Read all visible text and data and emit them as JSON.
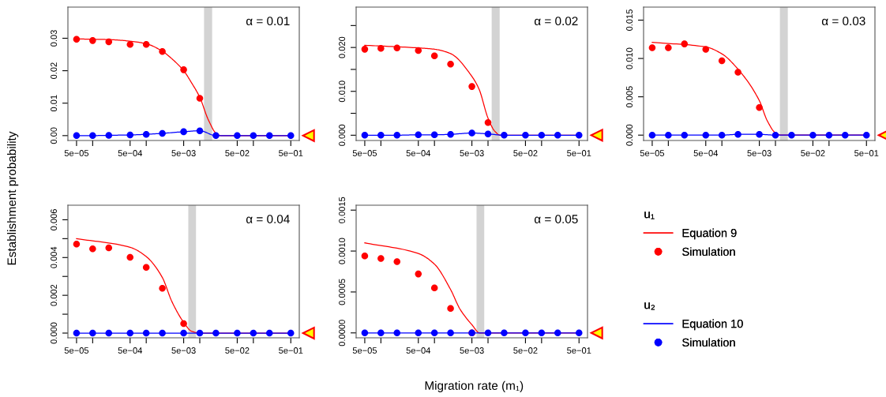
{
  "chart_data": [
    {
      "type": "line",
      "legend": "right",
      "legend_title": [
        "u₁",
        "u₂"
      ],
      "log": "x",
      "xlim": [
        3.45e-05,
        0.72
      ],
      "xticks": [
        {
          "value": 5e-05,
          "label": "5e−05"
        },
        {
          "value": 0.0001,
          "label": null
        },
        {
          "value": 0.0005,
          "label": "5e−04"
        },
        {
          "value": 0.001,
          "label": null
        },
        {
          "value": 0.005,
          "label": "5e−03"
        },
        {
          "value": 0.01,
          "label": null
        },
        {
          "value": 0.05,
          "label": "5e−02"
        },
        {
          "value": 0.1,
          "label": null
        },
        {
          "value": 0.5,
          "label": "5e−01"
        }
      ],
      "ylim": [
        -0.0015,
        0.0396
      ],
      "yticks": [
        {
          "value": 0,
          "label": "0.00"
        },
        {
          "value": 0.01,
          "label": "0.01"
        },
        {
          "value": 0.02,
          "label": "0.02"
        },
        {
          "value": 0.03,
          "label": "0.03"
        }
      ],
      "annotations": [
        "α = 0.01",
        "Migration rate (m₁)",
        "Establishment probability"
      ],
      "bands": [
        {
          "axis": "x",
          "from": 0.012,
          "to": 0.017,
          "color": "#d3d3d3"
        }
      ],
      "x": [
        5e-05,
        0.0001,
        0.0002,
        0.0005,
        0.001,
        0.002,
        0.005,
        0.01,
        0.02,
        0.05,
        0.1,
        0.2,
        0.5
      ],
      "series": [
        {
          "name": "Equation 9",
          "color": "#ff0000",
          "x": [
            5e-05,
            0.0001,
            0.0002,
            0.0005,
            0.001,
            0.002,
            0.003,
            0.005,
            0.007,
            0.01,
            0.0144,
            0.02,
            0.025,
            0.5
          ],
          "values": [
            0.0298,
            0.0297,
            0.0296,
            0.0291,
            0.0283,
            0.026,
            0.0237,
            0.02,
            0.0163,
            0.0118,
            0.0049,
            0.0008,
            0,
            0
          ]
        },
        {
          "name": "Simulation",
          "type": "scatter",
          "marker": "circle",
          "color": "#ff0000",
          "values": [
            0.0297,
            0.0293,
            0.0289,
            0.0281,
            0.0281,
            0.0259,
            0.0203,
            0.0115,
            null,
            null,
            null,
            null,
            null
          ]
        },
        {
          "name": "Equation 10",
          "color": "#0000ff",
          "x": [
            5e-05,
            0.0001,
            0.0002,
            0.0005,
            0.001,
            0.002,
            0.005,
            0.01,
            0.02,
            0.05,
            0.1,
            0.2,
            0.5
          ],
          "values": [
            0,
            0,
            0.0001,
            0.0002,
            0.0004,
            0.0007,
            0.0012,
            0.0015,
            0,
            0,
            0,
            0,
            0
          ]
        },
        {
          "name": "Simulation",
          "type": "scatter",
          "marker": "circle",
          "color": "#0000ff",
          "values": [
            0,
            0,
            0.0001,
            0.0002,
            0.0004,
            0.0007,
            0.0012,
            0.0015,
            0,
            0,
            0,
            0,
            0
          ]
        }
      ]
    },
    {
      "type": "line",
      "log": "x",
      "xlim": [
        3.45e-05,
        0.72
      ],
      "xticks": [
        {
          "value": 5e-05,
          "label": "5e−05"
        },
        {
          "value": 0.0001,
          "label": null
        },
        {
          "value": 0.0005,
          "label": "5e−04"
        },
        {
          "value": 0.001,
          "label": null
        },
        {
          "value": 0.005,
          "label": "5e−03"
        },
        {
          "value": 0.01,
          "label": null
        },
        {
          "value": 0.05,
          "label": "5e−02"
        },
        {
          "value": 0.1,
          "label": null
        },
        {
          "value": 0.5,
          "label": "5e−01"
        }
      ],
      "ylim": [
        -0.0012,
        0.0292
      ],
      "yticks": [
        {
          "value": 0,
          "label": "0.000"
        },
        {
          "value": 0.005,
          "label": null
        },
        {
          "value": 0.01,
          "label": "0.010"
        },
        {
          "value": 0.015,
          "label": null
        },
        {
          "value": 0.02,
          "label": "0.020"
        },
        {
          "value": 0.025,
          "label": null
        }
      ],
      "annotations": [
        "α = 0.02"
      ],
      "bands": [
        {
          "axis": "x",
          "from": 0.0117,
          "to": 0.0165,
          "color": "#d3d3d3"
        }
      ],
      "x": [
        5e-05,
        0.0001,
        0.0002,
        0.0005,
        0.001,
        0.002,
        0.005,
        0.01,
        0.02,
        0.05,
        0.1,
        0.2,
        0.5
      ],
      "series": [
        {
          "color": "#ff0000",
          "x": [
            5e-05,
            0.0005,
            0.001,
            0.002,
            0.005,
            0.0068,
            0.01,
            0.0134,
            0.017,
            0.5
          ],
          "values": [
            0.0205,
            0.0199,
            0.0196,
            0.0186,
            0.0134,
            0.0105,
            0.0039,
            0.0009,
            0,
            0
          ]
        },
        {
          "type": "scatter",
          "marker": "circle",
          "color": "#ff0000",
          "values": [
            0.0196,
            0.0198,
            0.0199,
            0.0193,
            0.0181,
            0.0162,
            0.0111,
            0.0029,
            null,
            null,
            null,
            null,
            null
          ]
        },
        {
          "color": "#0000ff",
          "x": [
            5e-05,
            0.0001,
            0.0002,
            0.0005,
            0.001,
            0.002,
            0.005,
            0.01,
            0.02,
            0.05,
            0.1,
            0.2,
            0.5
          ],
          "values": [
            0,
            0,
            0,
            0.0001,
            0.0001,
            0.0002,
            0.0005,
            0.0003,
            0,
            0,
            0,
            0,
            0
          ]
        },
        {
          "type": "scatter",
          "marker": "circle",
          "color": "#0000ff",
          "values": [
            0,
            0,
            0,
            0.0001,
            0.0001,
            0.0002,
            0.0005,
            0.0003,
            0,
            0,
            0,
            0,
            0
          ]
        }
      ]
    },
    {
      "type": "line",
      "log": "x",
      "xlim": [
        3.45e-05,
        0.72
      ],
      "xticks": [
        {
          "value": 5e-05,
          "label": "5e−05"
        },
        {
          "value": 0.0001,
          "label": null
        },
        {
          "value": 0.0005,
          "label": "5e−04"
        },
        {
          "value": 0.001,
          "label": null
        },
        {
          "value": 0.005,
          "label": "5e−03"
        },
        {
          "value": 0.01,
          "label": null
        },
        {
          "value": 0.05,
          "label": "5e−02"
        },
        {
          "value": 0.1,
          "label": null
        },
        {
          "value": 0.5,
          "label": "5e−01"
        }
      ],
      "ylim": [
        -0.0007,
        0.0167
      ],
      "yticks": [
        {
          "value": 0,
          "label": "0.000"
        },
        {
          "value": 0.005,
          "label": "0.005"
        },
        {
          "value": 0.01,
          "label": "0.010"
        },
        {
          "value": 0.015,
          "label": "0.015"
        }
      ],
      "annotations": [
        "α = 0.03"
      ],
      "bands": [
        {
          "axis": "x",
          "from": 0.0121,
          "to": 0.017,
          "color": "#d3d3d3"
        }
      ],
      "x": [
        5e-05,
        0.0001,
        0.0002,
        0.0005,
        0.001,
        0.002,
        0.005,
        0.01,
        0.02,
        0.05,
        0.1,
        0.2,
        0.5
      ],
      "series": [
        {
          "color": "#ff0000",
          "x": [
            5e-05,
            0.0005,
            0.001,
            0.002,
            0.005,
            0.007,
            0.01,
            0.013,
            0.5
          ],
          "values": [
            0.0121,
            0.0115,
            0.0106,
            0.0086,
            0.0045,
            0.0019,
            0.0003,
            0,
            0
          ]
        },
        {
          "type": "scatter",
          "marker": "circle",
          "color": "#ff0000",
          "values": [
            0.0114,
            0.0114,
            0.0119,
            0.0112,
            0.0097,
            0.0082,
            0.0036,
            null,
            null,
            null,
            null,
            null,
            null
          ]
        },
        {
          "color": "#0000ff",
          "x": [
            5e-05,
            0.0001,
            0.0002,
            0.0005,
            0.001,
            0.002,
            0.005,
            0.01,
            0.02,
            0.05,
            0.1,
            0.2,
            0.5
          ],
          "values": [
            0,
            0,
            0,
            0,
            0,
            0.0001,
            0.0001,
            0,
            0,
            0,
            0,
            0,
            0
          ]
        },
        {
          "type": "scatter",
          "marker": "circle",
          "color": "#0000ff",
          "values": [
            0,
            0,
            0,
            0,
            0,
            0.0001,
            0.0001,
            0,
            0,
            0,
            0,
            0,
            0
          ]
        }
      ]
    },
    {
      "type": "line",
      "log": "x",
      "xlim": [
        3.45e-05,
        0.72
      ],
      "xticks": [
        {
          "value": 5e-05,
          "label": "5e−05"
        },
        {
          "value": 0.0001,
          "label": null
        },
        {
          "value": 0.0005,
          "label": "5e−04"
        },
        {
          "value": 0.001,
          "label": null
        },
        {
          "value": 0.005,
          "label": "5e−03"
        },
        {
          "value": 0.01,
          "label": null
        },
        {
          "value": 0.05,
          "label": "5e−02"
        },
        {
          "value": 0.1,
          "label": null
        },
        {
          "value": 0.5,
          "label": "5e−01"
        }
      ],
      "ylim": [
        -0.00025,
        0.00677
      ],
      "yticks": [
        {
          "value": 0,
          "label": "0.000"
        },
        {
          "value": 0.001,
          "label": null
        },
        {
          "value": 0.002,
          "label": "0.002"
        },
        {
          "value": 0.003,
          "label": null
        },
        {
          "value": 0.004,
          "label": "0.004"
        },
        {
          "value": 0.005,
          "label": null
        },
        {
          "value": 0.006,
          "label": "0.006"
        }
      ],
      "annotations": [
        "α = 0.04"
      ],
      "bands": [
        {
          "axis": "x",
          "from": 0.0061,
          "to": 0.0085,
          "color": "#d3d3d3"
        }
      ],
      "x": [
        5e-05,
        0.0001,
        0.0002,
        0.0005,
        0.001,
        0.002,
        0.005,
        0.01,
        0.02,
        0.05,
        0.1,
        0.2,
        0.5
      ],
      "series": [
        {
          "color": "#ff0000",
          "x": [
            5e-05,
            0.0005,
            0.001,
            0.002,
            0.003,
            0.005,
            0.007,
            0.01,
            0.5
          ],
          "values": [
            0.005,
            0.00454,
            0.00405,
            0.00294,
            0.00168,
            0.00057,
            0.0001,
            0,
            0
          ]
        },
        {
          "type": "scatter",
          "marker": "circle",
          "color": "#ff0000",
          "values": [
            0.00471,
            0.00446,
            0.00451,
            0.00401,
            0.00348,
            0.00237,
            0.0005,
            null,
            null,
            null,
            null,
            null,
            null
          ]
        },
        {
          "color": "#0000ff",
          "x": [
            5e-05,
            0.0001,
            0.0002,
            0.0005,
            0.001,
            0.002,
            0.005,
            0.01,
            0.02,
            0.05,
            0.1,
            0.2,
            0.5
          ],
          "values": [
            0,
            0,
            0,
            0,
            0,
            0,
            0,
            0,
            0,
            0,
            0,
            0,
            0
          ]
        },
        {
          "type": "scatter",
          "marker": "circle",
          "color": "#0000ff",
          "values": [
            0,
            0,
            0,
            0,
            0,
            0,
            0,
            0,
            0,
            0,
            0,
            0,
            0
          ]
        }
      ]
    },
    {
      "type": "line",
      "log": "x",
      "xlim": [
        3.45e-05,
        0.72
      ],
      "xticks": [
        {
          "value": 5e-05,
          "label": "5e−05"
        },
        {
          "value": 0.0001,
          "label": null
        },
        {
          "value": 0.0005,
          "label": "5e−04"
        },
        {
          "value": 0.001,
          "label": null
        },
        {
          "value": 0.005,
          "label": "5e−03"
        },
        {
          "value": 0.01,
          "label": null
        },
        {
          "value": 0.05,
          "label": "5e−02"
        },
        {
          "value": 0.1,
          "label": null
        },
        {
          "value": 0.5,
          "label": "5e−01"
        }
      ],
      "ylim": [
        -6e-05,
        0.00156
      ],
      "yticks": [
        {
          "value": 0,
          "label": "0.0000"
        },
        {
          "value": 0.0005,
          "label": "0.0005"
        },
        {
          "value": 0.001,
          "label": "0.0010"
        },
        {
          "value": 0.0015,
          "label": "0.0015"
        }
      ],
      "annotations": [
        "α = 0.05"
      ],
      "bands": [
        {
          "axis": "x",
          "from": 0.0061,
          "to": 0.0085,
          "color": "#d3d3d3"
        }
      ],
      "x": [
        5e-05,
        0.0001,
        0.0002,
        0.0005,
        0.001,
        0.002,
        0.005,
        0.01,
        0.02,
        0.05,
        0.1,
        0.2,
        0.5
      ],
      "series": [
        {
          "color": "#ff0000",
          "x": [
            5e-05,
            0.0005,
            0.001,
            0.002,
            0.003,
            0.005,
            0.007,
            0.01,
            0.5
          ],
          "values": [
            0.0011,
            0.00097,
            0.00084,
            0.00053,
            0.00029,
            0.0001,
            0,
            0,
            0
          ]
        },
        {
          "type": "scatter",
          "marker": "circle",
          "color": "#ff0000",
          "values": [
            0.00094,
            0.00091,
            0.00087,
            0.00072,
            0.00055,
            0.0003,
            0,
            null,
            null,
            null,
            null,
            null,
            null
          ]
        },
        {
          "color": "#0000ff",
          "x": [
            5e-05,
            0.0001,
            0.0002,
            0.0005,
            0.001,
            0.002,
            0.005,
            0.01,
            0.02,
            0.05,
            0.1,
            0.2,
            0.5
          ],
          "values": [
            0,
            0,
            0,
            0,
            0,
            0,
            0,
            0,
            0,
            0,
            0,
            0,
            0
          ]
        },
        {
          "type": "scatter",
          "marker": "circle",
          "color": "#0000ff",
          "values": [
            0,
            0,
            0,
            0,
            0,
            0,
            0,
            0,
            0,
            0,
            0,
            0,
            0
          ]
        }
      ]
    }
  ]
}
